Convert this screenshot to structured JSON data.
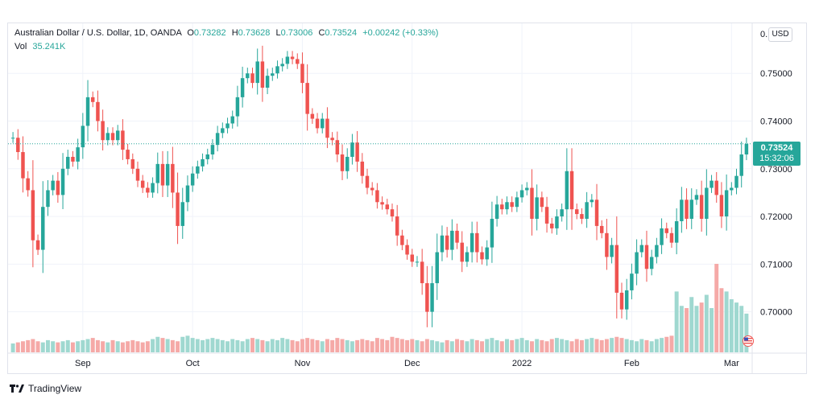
{
  "legend": {
    "symbol": "Australian Dollar / U.S. Dollar, 1D, OANDA",
    "open_label": "O",
    "open_value": "0.73282",
    "high_label": "H",
    "high_value": "0.73628",
    "low_label": "L",
    "low_value": "0.73006",
    "close_label": "C",
    "close_value": "0.73524",
    "change": "+0.00242 (+0.33%)",
    "vol_label": "Vol",
    "vol_value": "35.241K"
  },
  "currency_button": "USD",
  "last_price_tag": {
    "price": "0.73524",
    "countdown": "15:32:06"
  },
  "brand": {
    "name": "TradingView"
  },
  "colors": {
    "up": "#26a69a",
    "down": "#ef5350",
    "up_volume": "#9fd8d0",
    "down_volume": "#f5a9a7",
    "grid": "#f0f3fa"
  },
  "chart_data": {
    "type": "candlestick",
    "title": "Australian Dollar / U.S. Dollar, 1D, OANDA",
    "ylim": [
      0.6915,
      0.7605
    ],
    "y_ticks": [
      "0.70000",
      "0.71000",
      "0.72000",
      "0.73000",
      "0.74000",
      "0.75000"
    ],
    "y_tick_values": [
      0.7,
      0.71,
      0.72,
      0.73,
      0.74,
      0.75
    ],
    "top_tick_partial": "0.",
    "x_labels": [
      {
        "label": "Sep",
        "index": 14
      },
      {
        "label": "Oct",
        "index": 36
      },
      {
        "label": "Nov",
        "index": 58
      },
      {
        "label": "Dec",
        "index": 80
      },
      {
        "label": "2022",
        "index": 102
      },
      {
        "label": "Feb",
        "index": 124
      },
      {
        "label": "Mar",
        "index": 144
      }
    ],
    "last_price": 0.73524,
    "close": [
      0.7365,
      0.7335,
      0.728,
      0.7255,
      0.715,
      0.713,
      0.722,
      0.7255,
      0.7275,
      0.7245,
      0.73,
      0.7325,
      0.7315,
      0.7345,
      0.739,
      0.745,
      0.744,
      0.74,
      0.736,
      0.7375,
      0.736,
      0.738,
      0.734,
      0.732,
      0.73,
      0.7275,
      0.726,
      0.725,
      0.727,
      0.731,
      0.7265,
      0.731,
      0.725,
      0.718,
      0.723,
      0.7265,
      0.729,
      0.7305,
      0.732,
      0.733,
      0.735,
      0.7375,
      0.7385,
      0.7395,
      0.741,
      0.745,
      0.749,
      0.75,
      0.748,
      0.7525,
      0.747,
      0.7495,
      0.75,
      0.7515,
      0.752,
      0.7535,
      0.753,
      0.752,
      0.748,
      0.7415,
      0.7405,
      0.7385,
      0.7405,
      0.7365,
      0.736,
      0.733,
      0.7295,
      0.7325,
      0.7355,
      0.7315,
      0.7285,
      0.726,
      0.7255,
      0.723,
      0.7225,
      0.7215,
      0.72,
      0.716,
      0.714,
      0.712,
      0.7105,
      0.7105,
      0.706,
      0.7,
      0.706,
      0.7125,
      0.716,
      0.713,
      0.717,
      0.7145,
      0.7105,
      0.7125,
      0.7165,
      0.7125,
      0.711,
      0.7135,
      0.7195,
      0.7225,
      0.7215,
      0.723,
      0.722,
      0.724,
      0.7255,
      0.726,
      0.7195,
      0.724,
      0.722,
      0.7185,
      0.7175,
      0.72,
      0.7215,
      0.7295,
      0.7215,
      0.7205,
      0.7195,
      0.723,
      0.7235,
      0.718,
      0.7165,
      0.7115,
      0.714,
      0.704,
      0.7005,
      0.7045,
      0.708,
      0.7125,
      0.714,
      0.709,
      0.7115,
      0.714,
      0.7175,
      0.7165,
      0.7145,
      0.719,
      0.7235,
      0.7195,
      0.7235,
      0.7245,
      0.7195,
      0.726,
      0.7275,
      0.7245,
      0.72,
      0.7255,
      0.726,
      0.7285,
      0.733,
      0.7352
    ],
    "open_first": 0.7365,
    "volume": [
      8,
      9,
      10,
      11,
      12,
      10,
      9,
      11,
      10,
      9,
      10,
      11,
      9,
      10,
      11,
      12,
      13,
      11,
      10,
      9,
      11,
      10,
      9,
      10,
      11,
      10,
      9,
      10,
      12,
      14,
      13,
      12,
      11,
      10,
      14,
      15,
      13,
      12,
      11,
      12,
      13,
      12,
      11,
      10,
      12,
      11,
      10,
      12,
      13,
      12,
      11,
      10,
      12,
      11,
      13,
      12,
      11,
      10,
      12,
      13,
      12,
      11,
      10,
      12,
      11,
      13,
      12,
      11,
      10,
      11,
      12,
      11,
      10,
      13,
      12,
      11,
      14,
      13,
      12,
      11,
      12,
      11,
      10,
      12,
      11,
      10,
      9,
      11,
      10,
      12,
      11,
      10,
      12,
      11,
      10,
      12,
      13,
      11,
      10,
      12,
      11,
      12,
      13,
      11,
      10,
      12,
      11,
      10,
      12,
      13,
      12,
      11,
      10,
      12,
      11,
      12,
      13,
      12,
      11,
      12,
      13,
      14,
      13,
      12,
      11,
      10,
      12,
      11,
      10,
      12,
      13,
      14,
      15,
      55,
      42,
      40,
      50,
      42,
      45,
      52,
      40,
      80,
      58,
      55,
      48,
      45,
      42,
      35
    ]
  }
}
